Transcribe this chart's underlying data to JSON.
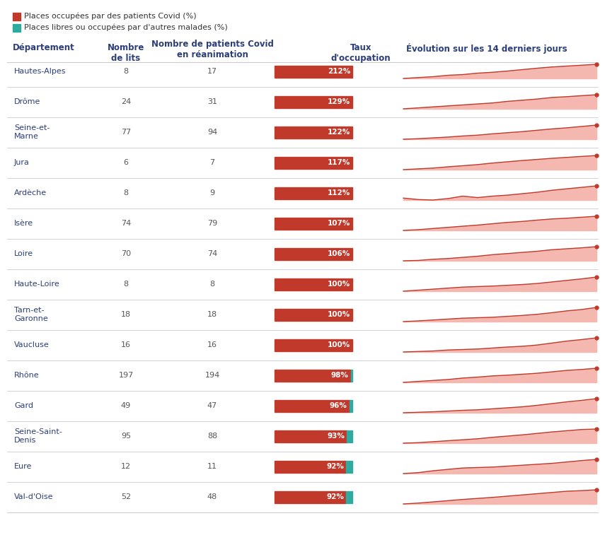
{
  "legend": [
    {
      "label": "Places occupées par des patients Covid (%)",
      "color": "#c0392b"
    },
    {
      "label": "Places libres ou occupées par d'autres malades (%)",
      "color": "#2eaaa0"
    }
  ],
  "rows": [
    {
      "dept": "Hautes-Alpes",
      "lits": 8,
      "patients": 17,
      "taux": 212,
      "free_pct": 0,
      "trend": [
        0.2,
        0.25,
        0.3,
        0.38,
        0.42,
        0.5,
        0.55,
        0.62,
        0.7,
        0.78,
        0.85,
        0.9,
        0.95,
        1.0
      ]
    },
    {
      "dept": "Drôme",
      "lits": 24,
      "patients": 31,
      "taux": 129,
      "free_pct": 0,
      "trend": [
        0.3,
        0.35,
        0.4,
        0.45,
        0.5,
        0.55,
        0.6,
        0.68,
        0.74,
        0.8,
        0.88,
        0.92,
        0.97,
        1.02
      ]
    },
    {
      "dept": "Seine-et-\nMarne",
      "lits": 77,
      "patients": 94,
      "taux": 122,
      "free_pct": 0,
      "trend": [
        0.5,
        0.52,
        0.55,
        0.58,
        0.62,
        0.65,
        0.7,
        0.74,
        0.78,
        0.83,
        0.88,
        0.92,
        0.97,
        1.02
      ]
    },
    {
      "dept": "Jura",
      "lits": 6,
      "patients": 7,
      "taux": 117,
      "free_pct": 0,
      "trend": [
        0.1,
        0.15,
        0.2,
        0.28,
        0.35,
        0.42,
        0.52,
        0.6,
        0.68,
        0.75,
        0.82,
        0.88,
        0.94,
        1.0
      ]
    },
    {
      "dept": "Ardèche",
      "lits": 8,
      "patients": 9,
      "taux": 112,
      "free_pct": 0,
      "trend": [
        0.5,
        0.44,
        0.42,
        0.48,
        0.58,
        0.52,
        0.58,
        0.62,
        0.68,
        0.74,
        0.82,
        0.88,
        0.94,
        1.0
      ]
    },
    {
      "dept": "Isère",
      "lits": 74,
      "patients": 79,
      "taux": 107,
      "free_pct": 0,
      "trend": [
        0.28,
        0.32,
        0.38,
        0.44,
        0.5,
        0.56,
        0.63,
        0.7,
        0.75,
        0.82,
        0.88,
        0.92,
        0.97,
        1.02
      ]
    },
    {
      "dept": "Loire",
      "lits": 70,
      "patients": 74,
      "taux": 106,
      "free_pct": 0,
      "trend": [
        0.28,
        0.3,
        0.36,
        0.4,
        0.46,
        0.52,
        0.6,
        0.66,
        0.72,
        0.78,
        0.86,
        0.91,
        0.96,
        1.02
      ]
    },
    {
      "dept": "Haute-Loire",
      "lits": 8,
      "patients": 8,
      "taux": 100,
      "free_pct": 0,
      "trend": [
        0.42,
        0.46,
        0.5,
        0.54,
        0.58,
        0.6,
        0.62,
        0.65,
        0.68,
        0.72,
        0.78,
        0.84,
        0.9,
        0.97
      ]
    },
    {
      "dept": "Tarn-et-\nGaronne",
      "lits": 18,
      "patients": 18,
      "taux": 100,
      "free_pct": 0,
      "trend": [
        0.35,
        0.38,
        0.42,
        0.46,
        0.5,
        0.52,
        0.54,
        0.58,
        0.62,
        0.67,
        0.74,
        0.82,
        0.88,
        0.97
      ]
    },
    {
      "dept": "Vaucluse",
      "lits": 16,
      "patients": 16,
      "taux": 100,
      "free_pct": 0,
      "trend": [
        0.4,
        0.42,
        0.44,
        0.48,
        0.5,
        0.52,
        0.56,
        0.6,
        0.63,
        0.68,
        0.76,
        0.84,
        0.9,
        0.97
      ]
    },
    {
      "dept": "Rhône",
      "lits": 197,
      "patients": 194,
      "taux": 98,
      "free_pct": 2,
      "trend": [
        0.38,
        0.42,
        0.46,
        0.5,
        0.56,
        0.6,
        0.65,
        0.68,
        0.72,
        0.76,
        0.82,
        0.88,
        0.92,
        0.97
      ]
    },
    {
      "dept": "Gard",
      "lits": 49,
      "patients": 47,
      "taux": 96,
      "free_pct": 4,
      "trend": [
        0.38,
        0.4,
        0.42,
        0.45,
        0.48,
        0.5,
        0.54,
        0.58,
        0.62,
        0.68,
        0.75,
        0.82,
        0.88,
        0.95
      ]
    },
    {
      "dept": "Seine-Saint-\nDenis",
      "lits": 95,
      "patients": 88,
      "taux": 93,
      "free_pct": 7,
      "trend": [
        0.44,
        0.46,
        0.5,
        0.54,
        0.58,
        0.62,
        0.68,
        0.73,
        0.78,
        0.84,
        0.9,
        0.95,
        1.0,
        1.02
      ]
    },
    {
      "dept": "Eure",
      "lits": 12,
      "patients": 11,
      "taux": 92,
      "free_pct": 8,
      "trend": [
        0.34,
        0.38,
        0.46,
        0.52,
        0.58,
        0.6,
        0.62,
        0.66,
        0.7,
        0.74,
        0.78,
        0.84,
        0.9,
        0.95
      ]
    },
    {
      "dept": "Val-d'Oise",
      "lits": 52,
      "patients": 48,
      "taux": 92,
      "free_pct": 8,
      "trend": [
        0.28,
        0.32,
        0.38,
        0.44,
        0.5,
        0.55,
        0.6,
        0.66,
        0.72,
        0.78,
        0.84,
        0.9,
        0.93,
        0.97
      ]
    }
  ],
  "covid_color": "#c0392b",
  "free_color": "#2eaaa0",
  "trend_line_color": "#c0392b",
  "trend_fill_color": "#f5b8b0",
  "bg_color": "#ffffff",
  "header_color": "#2c3e7a",
  "dept_color": "#2c3e7a",
  "separator_color": "#cccccc"
}
